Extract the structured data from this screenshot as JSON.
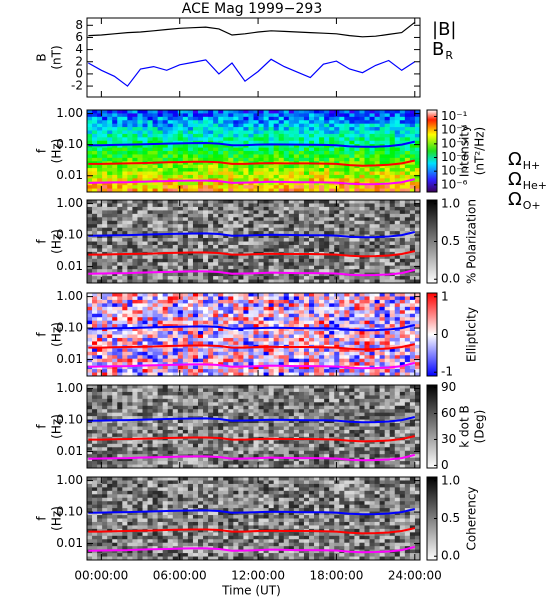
{
  "chart_data": [
    {
      "type": "line",
      "title": "ACE Mag 1999−293",
      "ylabel": [
        "B",
        "(nT)"
      ],
      "xlim": [
        -1.1,
        24.4
      ],
      "ylim": [
        -3.8,
        9.2
      ],
      "yticks": [
        -2,
        0,
        2,
        4,
        6,
        8
      ],
      "x": [
        -1,
        0,
        1,
        2,
        3,
        4,
        5,
        6,
        7,
        8,
        9,
        10,
        11,
        12,
        13,
        14,
        15,
        16,
        17,
        18,
        19,
        20,
        21,
        22,
        23,
        24
      ],
      "series": [
        {
          "name": "|B|",
          "color": "#000000",
          "values": [
            6.3,
            6.4,
            6.6,
            6.8,
            6.9,
            7.1,
            7.3,
            7.5,
            7.6,
            7.7,
            7.4,
            6.4,
            6.6,
            6.9,
            7.1,
            7.0,
            6.9,
            6.8,
            6.7,
            6.6,
            6.3,
            6.1,
            6.2,
            6.5,
            6.8,
            8.5
          ]
        },
        {
          "name": "B",
          "name_sub": "R",
          "color": "#0000ff",
          "values": [
            1.8,
            0.6,
            -0.4,
            -2.0,
            0.8,
            1.2,
            0.6,
            1.5,
            1.9,
            2.3,
            0.0,
            1.8,
            -1.2,
            0.4,
            2.4,
            1.2,
            0.3,
            -0.6,
            1.6,
            2.1,
            0.8,
            0.2,
            1.4,
            2.2,
            0.6,
            2.0
          ]
        }
      ]
    },
    {
      "type": "heatmap",
      "ylabel": [
        "f",
        "(Hz)"
      ],
      "ylog": true,
      "xlim": [
        -1.1,
        24.4
      ],
      "ylim": [
        0.003,
        1.3
      ],
      "yticks": [
        {
          "value": 1,
          "label": "1.00"
        },
        {
          "value": 0.1,
          "label": "0.10"
        },
        0.01
      ],
      "colormap": "rainbow",
      "clog": true,
      "clim": [
        3e-07,
        0.3
      ],
      "clabel": [
        "Intensity",
        "(nT²/Hz)"
      ],
      "cticks": [
        {
          "value": 0.1,
          "label": "10⁻¹"
        },
        {
          "value": 0.01,
          "label": "10⁻²"
        },
        {
          "value": 0.001,
          "label": "10⁻³"
        },
        {
          "value": 0.0001,
          "label": "10⁻⁴"
        },
        {
          "value": 1e-05,
          "label": "10⁻⁵"
        },
        {
          "value": 1e-06,
          "label": "10⁻⁶"
        }
      ],
      "x": [
        -1,
        0,
        1,
        2,
        3,
        4,
        5,
        6,
        7,
        8,
        9,
        10,
        11,
        12,
        13,
        14,
        15,
        16,
        17,
        18,
        19,
        20,
        21,
        22,
        23,
        24
      ],
      "series": [
        {
          "name": "Ω",
          "name_sub": "H+",
          "color": "#0000ff",
          "values": [
            0.095,
            0.096,
            0.098,
            0.1,
            0.102,
            0.105,
            0.108,
            0.11,
            0.112,
            0.113,
            0.108,
            0.095,
            0.097,
            0.1,
            0.102,
            0.101,
            0.1,
            0.099,
            0.098,
            0.096,
            0.088,
            0.085,
            0.086,
            0.09,
            0.1,
            0.125
          ]
        },
        {
          "name": "Ω",
          "name_sub": "He+",
          "color": "#ff0000",
          "values": [
            0.024,
            0.024,
            0.0245,
            0.025,
            0.0255,
            0.026,
            0.027,
            0.0275,
            0.028,
            0.028,
            0.027,
            0.024,
            0.024,
            0.025,
            0.0255,
            0.025,
            0.025,
            0.025,
            0.0245,
            0.024,
            0.022,
            0.021,
            0.0215,
            0.0225,
            0.025,
            0.031
          ]
        },
        {
          "name": "Ω",
          "name_sub": "O+",
          "color": "#ff00ff",
          "values": [
            0.0059,
            0.006,
            0.0061,
            0.0062,
            0.0064,
            0.0066,
            0.0067,
            0.0069,
            0.007,
            0.007,
            0.0067,
            0.0059,
            0.006,
            0.0062,
            0.0064,
            0.0063,
            0.0062,
            0.0062,
            0.0061,
            0.006,
            0.0055,
            0.0053,
            0.0054,
            0.0056,
            0.0062,
            0.0078
          ]
        }
      ]
    },
    {
      "type": "heatmap",
      "ylabel": [
        "f",
        "(Hz)"
      ],
      "ylog": true,
      "xlim": [
        -1.1,
        24.4
      ],
      "ylim": [
        0.003,
        1.3
      ],
      "yticks": [
        {
          "value": 1,
          "label": "1.00"
        },
        {
          "value": 0.1,
          "label": "0.10"
        },
        0.01
      ],
      "colormap": "gray",
      "clim": [
        -0.05,
        1.05
      ],
      "clabel": [
        "% Polarization"
      ],
      "cticks": [
        {
          "value": 1,
          "label": "1.0"
        },
        0.5,
        {
          "value": 0,
          "label": "0.0"
        }
      ]
    },
    {
      "type": "heatmap",
      "ylabel": [
        "f",
        "(Hz)"
      ],
      "ylog": true,
      "xlim": [
        -1.1,
        24.4
      ],
      "ylim": [
        0.003,
        1.3
      ],
      "yticks": [
        {
          "value": 1,
          "label": "1.00"
        },
        {
          "value": 0.1,
          "label": "0.10"
        },
        0.01
      ],
      "colormap": "bwr",
      "clim": [
        -1.1,
        1.1
      ],
      "clabel": [
        "Ellipticity"
      ],
      "cticks": [
        1,
        0,
        -1
      ]
    },
    {
      "type": "heatmap",
      "ylabel": [
        "f",
        "(Hz)"
      ],
      "ylog": true,
      "xlim": [
        -1.1,
        24.4
      ],
      "ylim": [
        0.003,
        1.3
      ],
      "yticks": [
        {
          "value": 1,
          "label": "1.00"
        },
        {
          "value": 0.1,
          "label": "0.10"
        },
        0.01
      ],
      "colormap": "gray",
      "clim": [
        -3,
        93
      ],
      "clabel": [
        "k dot B",
        "(Deg)"
      ],
      "cticks": [
        90,
        60,
        30,
        0
      ]
    },
    {
      "type": "heatmap",
      "ylabel": [
        "f",
        "(Hz)"
      ],
      "ylog": true,
      "xlim": [
        -1.1,
        24.4
      ],
      "ylim": [
        0.003,
        1.3
      ],
      "yticks": [
        {
          "value": 1,
          "label": "1.00"
        },
        {
          "value": 0.1,
          "label": "0.10"
        },
        0.01
      ],
      "colormap": "gray",
      "clim": [
        -0.05,
        1.05
      ],
      "clabel": [
        "Coherency"
      ],
      "cticks": [
        {
          "value": 1,
          "label": "1.0"
        },
        0.5,
        {
          "value": 0,
          "label": "0.0"
        }
      ],
      "xlabel": "Time (UT)",
      "xticks": [
        {
          "value": 0,
          "label": "00:00:00"
        },
        {
          "value": 6,
          "label": "06:00:00"
        },
        {
          "value": 12,
          "label": "12:00:00"
        },
        {
          "value": 18,
          "label": "18:00:00"
        },
        {
          "value": 24,
          "label": "24:00:00"
        }
      ]
    }
  ]
}
